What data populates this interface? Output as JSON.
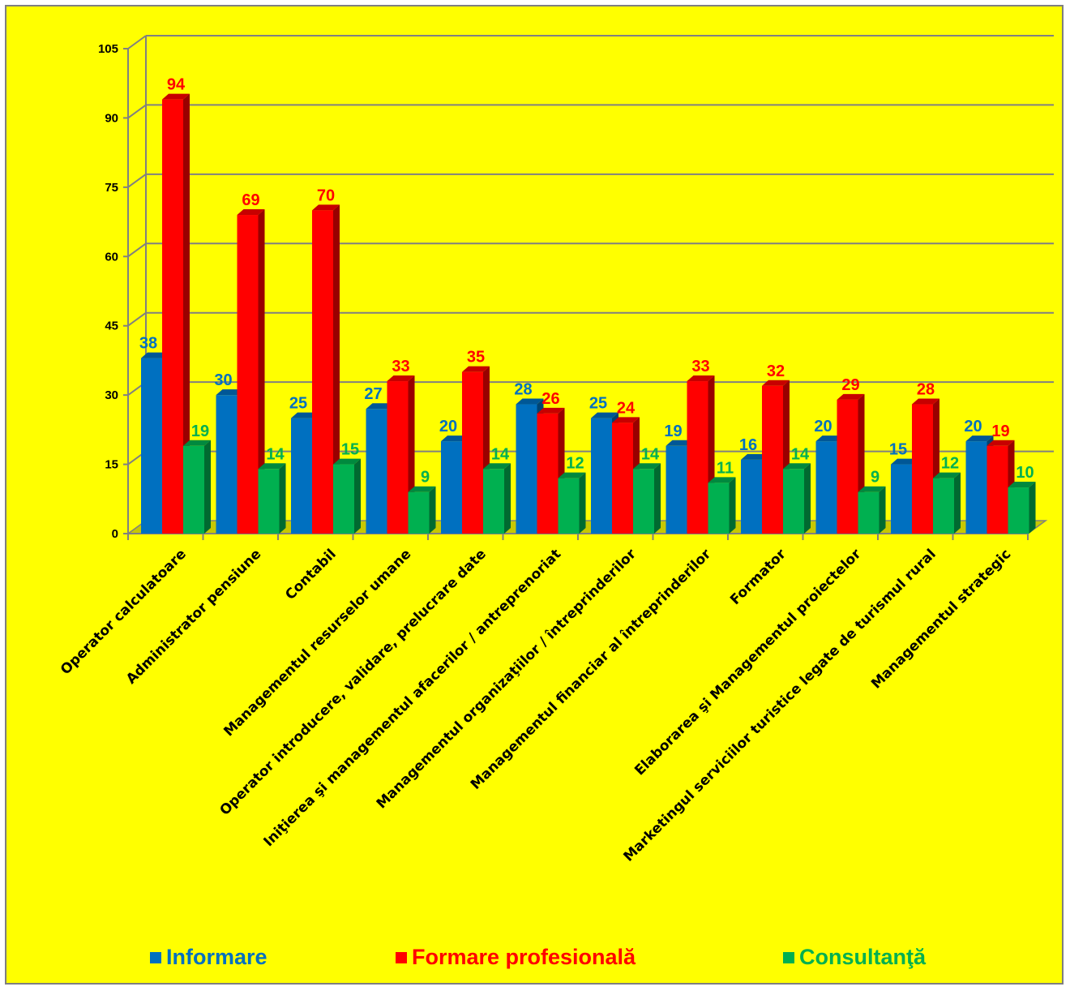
{
  "chart_data": {
    "type": "bar",
    "categories": [
      "Operator calculatoare",
      "Administrator pensiune",
      "Contabil",
      "Managementul resurselor umane",
      "Operator introducere, validare, prelucrare date",
      "Iniţierea şi managementul afacerilor / antreprenoriat",
      "Managementul organizaţiilor / întreprinderilor",
      "Managementul financiar al întreprinderilor",
      "Formator",
      "Elaborarea şi Managementul proiectelor",
      "Marketingul serviciilor turistice legate de turismul rural",
      "Managementul strategic"
    ],
    "series": [
      {
        "name": "Informare",
        "color": "#0070c0",
        "values": [
          38,
          30,
          25,
          27,
          20,
          28,
          25,
          19,
          16,
          20,
          15,
          20
        ]
      },
      {
        "name": "Formare profesională",
        "color": "#ff0000",
        "values": [
          94,
          69,
          70,
          33,
          35,
          26,
          24,
          33,
          32,
          29,
          28,
          19
        ]
      },
      {
        "name": "Consultanţă",
        "color": "#00b050",
        "values": [
          19,
          14,
          15,
          9,
          14,
          12,
          14,
          11,
          14,
          9,
          12,
          10
        ]
      }
    ],
    "yticks": [
      "0",
      "15",
      "30",
      "45",
      "60",
      "75",
      "90",
      "105"
    ],
    "ylim": [
      0,
      105
    ],
    "grid": true,
    "legend_position": "bottom"
  }
}
